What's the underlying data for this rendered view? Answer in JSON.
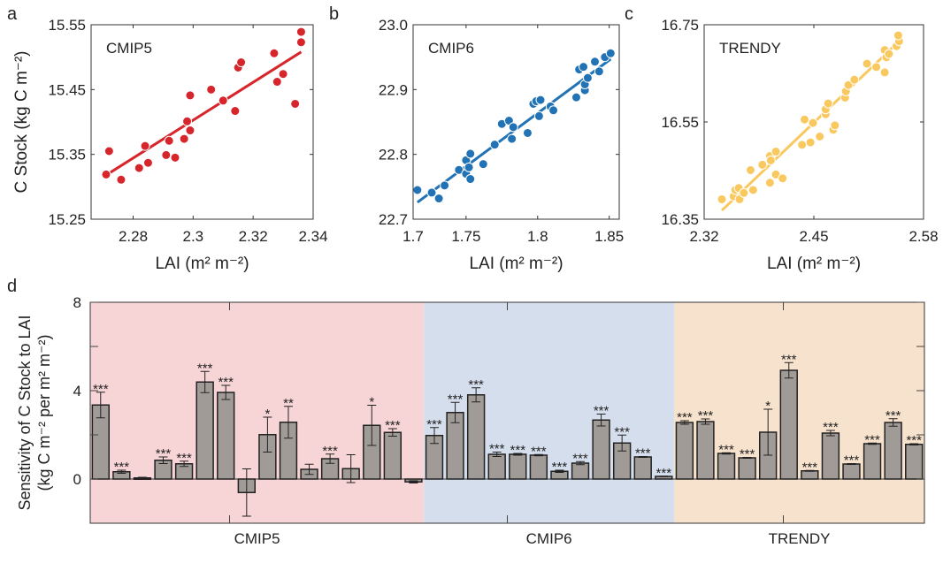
{
  "chart_data": [
    {
      "panel": "a",
      "type": "scatter",
      "label": "CMIP5",
      "xlabel": "LAI (m² m⁻²)",
      "ylabel": "C Stock (kg C m⁻²)",
      "xlim": [
        2.266,
        2.34
      ],
      "ylim": [
        15.25,
        15.55
      ],
      "xticks": [
        2.28,
        2.3,
        2.32,
        2.34
      ],
      "xtick_labels": [
        "2.28",
        "2.3",
        "2.32",
        "2.34"
      ],
      "yticks": [
        15.25,
        15.35,
        15.45,
        15.55
      ],
      "ytick_labels": [
        "15.25",
        "15.35",
        "15.45",
        "15.55"
      ],
      "color": "#d7262b",
      "band_color": "#f4c4c6",
      "points": [
        [
          2.271,
          15.319
        ],
        [
          2.272,
          15.355
        ],
        [
          2.276,
          15.311
        ],
        [
          2.282,
          15.329
        ],
        [
          2.284,
          15.363
        ],
        [
          2.285,
          15.337
        ],
        [
          2.291,
          15.349
        ],
        [
          2.292,
          15.371
        ],
        [
          2.294,
          15.345
        ],
        [
          2.297,
          15.374
        ],
        [
          2.298,
          15.401
        ],
        [
          2.299,
          15.387
        ],
        [
          2.299,
          15.441
        ],
        [
          2.306,
          15.45
        ],
        [
          2.31,
          15.433
        ],
        [
          2.314,
          15.417
        ],
        [
          2.315,
          15.484
        ],
        [
          2.316,
          15.492
        ],
        [
          2.327,
          15.506
        ],
        [
          2.328,
          15.462
        ],
        [
          2.33,
          15.474
        ],
        [
          2.334,
          15.428
        ],
        [
          2.336,
          15.523
        ],
        [
          2.336,
          15.539
        ]
      ],
      "fit": {
        "x": [
          2.271,
          2.336
        ],
        "y": [
          15.318,
          15.508
        ],
        "ci": 0.022
      }
    },
    {
      "panel": "b",
      "type": "scatter",
      "label": "CMIP6",
      "xlabel": "LAI (m² m⁻²)",
      "xlim": [
        1.713,
        1.857
      ],
      "ylim": [
        22.7,
        23.0
      ],
      "xticks": [
        1.713,
        1.75,
        1.8,
        1.85
      ],
      "xtick_labels": [
        "1.7",
        "1.75",
        "1.8",
        "1.85"
      ],
      "yticks": [
        22.7,
        22.8,
        22.9,
        23.0
      ],
      "ytick_labels": [
        "22.7",
        "22.8",
        "22.9",
        "23.0"
      ],
      "color": "#2173b5",
      "band_color": "#c4d9ec",
      "points": [
        [
          1.716,
          22.745
        ],
        [
          1.726,
          22.741
        ],
        [
          1.731,
          22.732
        ],
        [
          1.735,
          22.752
        ],
        [
          1.745,
          22.776
        ],
        [
          1.75,
          22.77
        ],
        [
          1.75,
          22.791
        ],
        [
          1.752,
          22.78
        ],
        [
          1.753,
          22.801
        ],
        [
          1.753,
          22.762
        ],
        [
          1.762,
          22.785
        ],
        [
          1.77,
          22.815
        ],
        [
          1.775,
          22.847
        ],
        [
          1.78,
          22.852
        ],
        [
          1.782,
          22.824
        ],
        [
          1.783,
          22.842
        ],
        [
          1.793,
          22.833
        ],
        [
          1.797,
          22.878
        ],
        [
          1.799,
          22.882
        ],
        [
          1.802,
          22.884
        ],
        [
          1.801,
          22.859
        ],
        [
          1.809,
          22.874
        ],
        [
          1.811,
          22.868
        ],
        [
          1.827,
          22.888
        ],
        [
          1.829,
          22.931
        ],
        [
          1.832,
          22.935
        ],
        [
          1.833,
          22.899
        ],
        [
          1.833,
          22.908
        ],
        [
          1.835,
          22.918
        ],
        [
          1.84,
          22.943
        ],
        [
          1.843,
          22.928
        ],
        [
          1.847,
          22.95
        ],
        [
          1.851,
          22.956
        ]
      ],
      "fit": {
        "x": [
          1.716,
          1.851
        ],
        "y": [
          22.726,
          22.947
        ],
        "ci": 0.01
      }
    },
    {
      "panel": "c",
      "type": "scatter",
      "label": "TRENDY",
      "xlabel": "LAI (m² m⁻²)",
      "xlim": [
        2.32,
        2.58
      ],
      "ylim": [
        16.35,
        16.75
      ],
      "xticks": [
        2.32,
        2.45,
        2.58
      ],
      "xtick_labels": [
        "2.32",
        "2.45",
        "2.58"
      ],
      "yticks": [
        16.35,
        16.55,
        16.75
      ],
      "ytick_labels": [
        "16.35",
        "16.55",
        "16.75"
      ],
      "color": "#f9c85f",
      "band_color": "#fbe7bd",
      "points": [
        [
          2.341,
          16.391
        ],
        [
          2.355,
          16.397
        ],
        [
          2.357,
          16.41
        ],
        [
          2.361,
          16.414
        ],
        [
          2.362,
          16.391
        ],
        [
          2.367,
          16.404
        ],
        [
          2.375,
          16.451
        ],
        [
          2.378,
          16.41
        ],
        [
          2.389,
          16.462
        ],
        [
          2.398,
          16.48
        ],
        [
          2.399,
          16.471
        ],
        [
          2.398,
          16.425
        ],
        [
          2.405,
          16.489
        ],
        [
          2.405,
          16.442
        ],
        [
          2.413,
          16.434
        ],
        [
          2.436,
          16.503
        ],
        [
          2.439,
          16.555
        ],
        [
          2.446,
          16.508
        ],
        [
          2.449,
          16.548
        ],
        [
          2.457,
          16.52
        ],
        [
          2.464,
          16.566
        ],
        [
          2.464,
          16.576
        ],
        [
          2.467,
          16.588
        ],
        [
          2.473,
          16.534
        ],
        [
          2.475,
          16.543
        ],
        [
          2.487,
          16.6
        ],
        [
          2.488,
          16.613
        ],
        [
          2.491,
          16.626
        ],
        [
          2.498,
          16.637
        ],
        [
          2.513,
          16.67
        ],
        [
          2.524,
          16.663
        ],
        [
          2.534,
          16.698
        ],
        [
          2.534,
          16.652
        ],
        [
          2.536,
          16.683
        ],
        [
          2.539,
          16.69
        ],
        [
          2.548,
          16.706
        ],
        [
          2.551,
          16.716
        ],
        [
          2.55,
          16.728
        ]
      ],
      "fit": {
        "x": [
          2.341,
          2.551
        ],
        "y": [
          16.368,
          16.716
        ],
        "ci": 0.01
      }
    },
    {
      "panel": "d",
      "type": "bar",
      "ylabel_line1": "Sensitivity of C Stock to LAI",
      "ylabel_line2": "(kg C m⁻² per m² m⁻²)",
      "ylim": [
        -2,
        8
      ],
      "yticks": [
        0,
        4,
        8
      ],
      "ytick_labels": [
        "0",
        "4",
        "8"
      ],
      "minor_yticks": [
        2,
        6
      ],
      "bar_color": "#a09b97",
      "groups": [
        {
          "name": "CMIP5",
          "background": "#f7d4d6",
          "values": [
            3.35,
            0.33,
            0.05,
            0.85,
            0.69,
            4.39,
            3.92,
            -0.61,
            2.01,
            2.57,
            0.44,
            0.92,
            0.47,
            2.43,
            2.11,
            -0.13
          ],
          "errors": [
            0.58,
            0.07,
            0.03,
            0.15,
            0.12,
            0.48,
            0.32,
            1.07,
            0.79,
            0.72,
            0.23,
            0.21,
            0.63,
            0.91,
            0.17,
            0.05
          ],
          "significance": [
            "***",
            "***",
            "",
            "***",
            "***",
            "***",
            "***",
            "",
            "*",
            "**",
            "",
            "***",
            "",
            "*",
            "***",
            ""
          ]
        },
        {
          "name": "CMIP6",
          "background": "#d5deec",
          "values": [
            1.97,
            3.01,
            3.81,
            1.12,
            1.12,
            1.08,
            0.35,
            0.72,
            2.67,
            1.63,
            1.0,
            0.12
          ],
          "errors": [
            0.36,
            0.46,
            0.32,
            0.1,
            0.04,
            0.03,
            0.05,
            0.07,
            0.27,
            0.36,
            0.02,
            0.01
          ],
          "significance": [
            "***",
            "***",
            "***",
            "***",
            "***",
            "***",
            "***",
            "***",
            "***",
            "***",
            "***",
            "***"
          ]
        },
        {
          "name": "TRENDY",
          "background": "#f6e2cd",
          "values": [
            2.56,
            2.6,
            1.16,
            0.96,
            2.12,
            4.92,
            0.37,
            2.08,
            0.68,
            1.6,
            2.56,
            1.57
          ],
          "errors": [
            0.08,
            0.12,
            0.03,
            0.02,
            1.04,
            0.35,
            0.02,
            0.12,
            0.02,
            0.03,
            0.17,
            0.03
          ],
          "significance": [
            "***",
            "***",
            "***",
            "***",
            "*",
            "***",
            "***",
            "***",
            "***",
            "***",
            "***",
            "***"
          ]
        }
      ]
    }
  ]
}
